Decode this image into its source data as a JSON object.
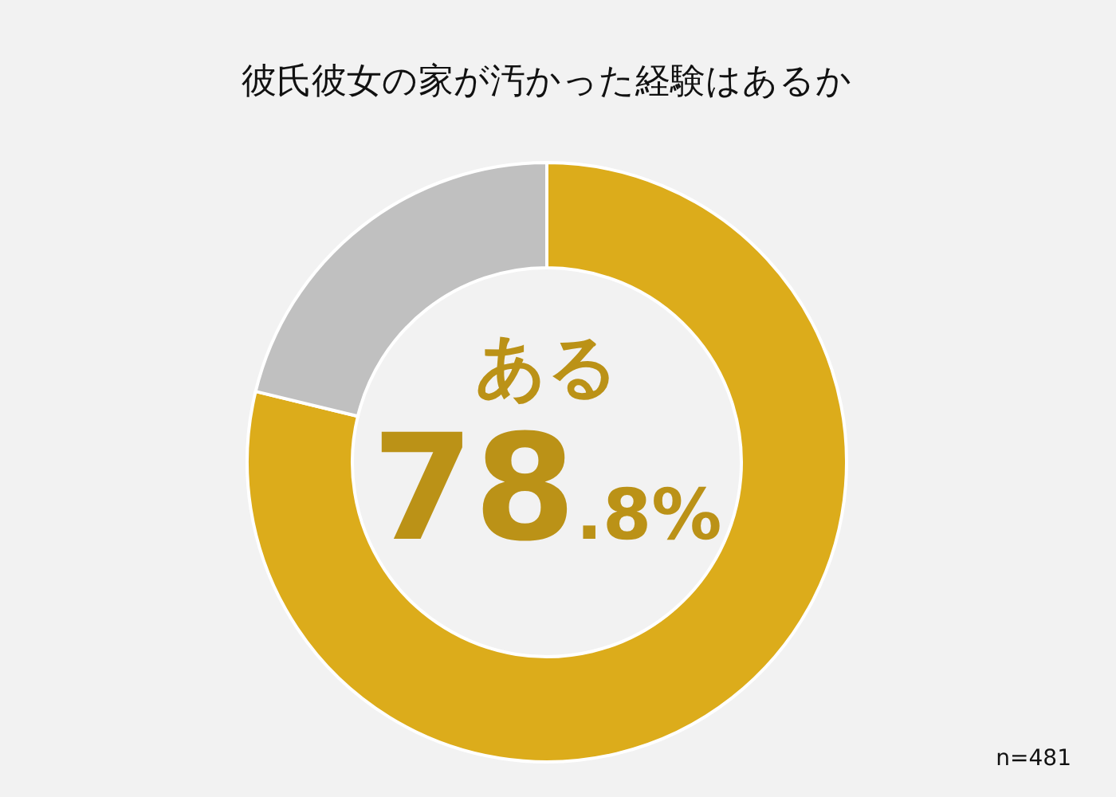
{
  "chart_data": {
    "type": "donut",
    "title": "彼氏彼女の家が汚かった経験はあるか",
    "categories": [
      "ある",
      null
    ],
    "values": [
      78.8,
      21.2
    ],
    "colors": [
      "#dcac1b",
      "#c0c0c0"
    ],
    "value_labels": [
      "78.8%",
      null
    ],
    "annotations": [
      "n=481"
    ]
  }
}
